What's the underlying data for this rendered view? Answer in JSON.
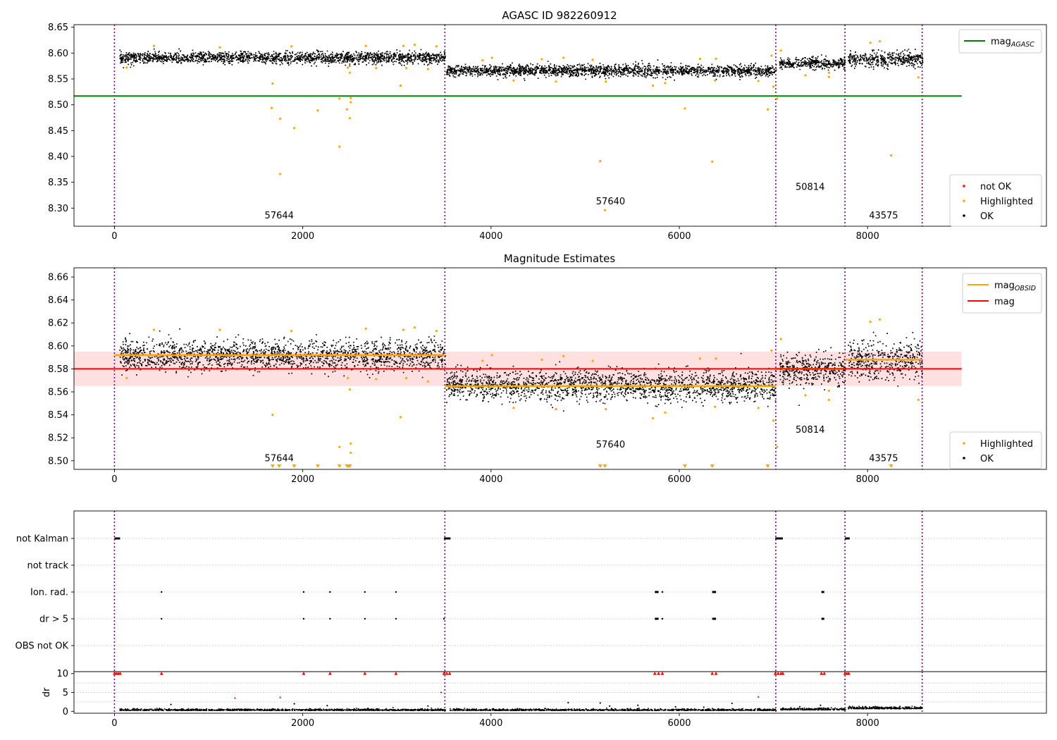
{
  "chart_data": [
    {
      "id": "p1",
      "type": "scatter",
      "title": "AGASC ID 982260912",
      "xlabel": "",
      "ylabel": "",
      "xlim": [
        -430,
        9900
      ],
      "ylim": [
        8.265,
        8.655
      ],
      "xticks": [
        0,
        2000,
        4000,
        6000,
        8000
      ],
      "xtick_labels": [
        "0",
        "2000",
        "4000",
        "6000",
        "8000"
      ],
      "yticks": [
        8.3,
        8.35,
        8.4,
        8.45,
        8.5,
        8.55,
        8.6,
        8.65
      ],
      "ytick_labels": [
        "8.30",
        "8.35",
        "8.40",
        "8.45",
        "8.50",
        "8.55",
        "8.60",
        "8.65"
      ],
      "obsid_boundaries": [
        0,
        3510,
        7025,
        7760,
        8580
      ],
      "obsid_labels": [
        {
          "x": 1750,
          "y": 8.28,
          "text": "57644"
        },
        {
          "x": 5270,
          "y": 8.307,
          "text": "57640"
        },
        {
          "x": 7390,
          "y": 8.335,
          "text": "50814"
        },
        {
          "x": 8170,
          "y": 8.28,
          "text": "43575"
        }
      ],
      "reference_lines": [
        {
          "name": "mag_AGASC",
          "y": 8.517,
          "x0": -430,
          "x1": 9000,
          "color": "#008000"
        }
      ],
      "ok_segments": [
        {
          "x0": 50,
          "x1": 3510,
          "mean": 8.592,
          "std": 0.0055
        },
        {
          "x0": 3520,
          "x1": 7025,
          "mean": 8.567,
          "std": 0.0055
        },
        {
          "x0": 7060,
          "x1": 7760,
          "mean": 8.581,
          "std": 0.0055
        },
        {
          "x0": 7790,
          "x1": 8580,
          "mean": 8.589,
          "std": 0.007
        }
      ],
      "highlighted": [
        [
          130,
          8.572
        ],
        [
          420,
          8.614
        ],
        [
          1120,
          8.611
        ],
        [
          1680,
          8.541
        ],
        [
          1670,
          8.494
        ],
        [
          1760,
          8.473
        ],
        [
          1760,
          8.366
        ],
        [
          1880,
          8.613
        ],
        [
          1910,
          8.455
        ],
        [
          2160,
          8.489
        ],
        [
          2390,
          8.512
        ],
        [
          2390,
          8.419
        ],
        [
          2470,
          8.491
        ],
        [
          2480,
          8.572
        ],
        [
          2500,
          8.562
        ],
        [
          2500,
          8.474
        ],
        [
          2510,
          8.505
        ],
        [
          2510,
          8.513
        ],
        [
          2670,
          8.614
        ],
        [
          2780,
          8.571
        ],
        [
          3040,
          8.537
        ],
        [
          3070,
          8.614
        ],
        [
          3100,
          8.571
        ],
        [
          3190,
          8.616
        ],
        [
          3420,
          8.613
        ],
        [
          3330,
          8.569
        ],
        [
          3910,
          8.586
        ],
        [
          4010,
          8.591
        ],
        [
          4240,
          8.547
        ],
        [
          4540,
          8.588
        ],
        [
          4690,
          8.545
        ],
        [
          4770,
          8.591
        ],
        [
          5080,
          8.587
        ],
        [
          5160,
          8.391
        ],
        [
          5210,
          8.296
        ],
        [
          5220,
          8.545
        ],
        [
          5720,
          8.537
        ],
        [
          5850,
          8.542
        ],
        [
          6060,
          8.493
        ],
        [
          6220,
          8.589
        ],
        [
          6350,
          8.39
        ],
        [
          6390,
          8.589
        ],
        [
          6380,
          8.547
        ],
        [
          6840,
          8.546
        ],
        [
          6940,
          8.491
        ],
        [
          6980,
          8.595
        ],
        [
          7000,
          8.535
        ],
        [
          7040,
          8.512
        ],
        [
          7080,
          8.605
        ],
        [
          7340,
          8.557
        ],
        [
          7590,
          8.554
        ],
        [
          7590,
          8.562
        ],
        [
          8030,
          8.62
        ],
        [
          8130,
          8.623
        ],
        [
          8250,
          8.402
        ],
        [
          8540,
          8.553
        ]
      ],
      "legend_lines": [
        {
          "label": "mag",
          "sub": "AGASC",
          "color": "#008000"
        }
      ],
      "legend_points": [
        {
          "label": "not OK",
          "color": "#ff0000"
        },
        {
          "label": "Highlighted",
          "color": "#ffa500"
        },
        {
          "label": "OK",
          "color": "#000000"
        }
      ]
    },
    {
      "id": "p2",
      "type": "scatter",
      "title": "Magnitude Estimates",
      "xlabel": "",
      "ylabel": "",
      "xlim": [
        -430,
        9900
      ],
      "ylim": [
        8.4925,
        8.668
      ],
      "xticks": [
        0,
        2000,
        4000,
        6000,
        8000
      ],
      "xtick_labels": [
        "0",
        "2000",
        "4000",
        "6000",
        "8000"
      ],
      "yticks": [
        8.5,
        8.52,
        8.54,
        8.56,
        8.58,
        8.6,
        8.62,
        8.64,
        8.66
      ],
      "ytick_labels": [
        "8.50",
        "8.52",
        "8.54",
        "8.56",
        "8.58",
        "8.60",
        "8.62",
        "8.64",
        "8.66"
      ],
      "obsid_boundaries": [
        0,
        3510,
        7025,
        7760,
        8580
      ],
      "obsid_labels": [
        {
          "x": 1750,
          "y": 8.4995,
          "text": "57644"
        },
        {
          "x": 5270,
          "y": 8.5115,
          "text": "57640"
        },
        {
          "x": 7390,
          "y": 8.5245,
          "text": "50814"
        },
        {
          "x": 8170,
          "y": 8.4995,
          "text": "43575"
        }
      ],
      "mag": {
        "y": 8.58,
        "lo": 8.565,
        "hi": 8.595,
        "x0": -430,
        "x1": 9000,
        "color": "#ff0000"
      },
      "mag_obsid": [
        {
          "x0": 0,
          "x1": 3510,
          "y": 8.592
        },
        {
          "x0": 3510,
          "x1": 7025,
          "y": 8.565
        },
        {
          "x0": 7025,
          "x1": 7760,
          "y": 8.58
        },
        {
          "x0": 7760,
          "x1": 8580,
          "y": 8.588
        }
      ],
      "ok_segments": [
        {
          "x0": 50,
          "x1": 3510,
          "mean": 8.592,
          "std": 0.0065
        },
        {
          "x0": 3520,
          "x1": 7025,
          "mean": 8.566,
          "std": 0.0065
        },
        {
          "x0": 7060,
          "x1": 7760,
          "mean": 8.58,
          "std": 0.0065
        },
        {
          "x0": 7790,
          "x1": 8580,
          "mean": 8.588,
          "std": 0.0085
        }
      ],
      "highlighted": [
        [
          130,
          8.572
        ],
        [
          420,
          8.614
        ],
        [
          1120,
          8.614
        ],
        [
          1680,
          8.54
        ],
        [
          1880,
          8.613
        ],
        [
          2390,
          8.512
        ],
        [
          2480,
          8.572
        ],
        [
          2500,
          8.562
        ],
        [
          2510,
          8.507
        ],
        [
          2510,
          8.515
        ],
        [
          2670,
          8.615
        ],
        [
          2780,
          8.571
        ],
        [
          3040,
          8.538
        ],
        [
          3070,
          8.614
        ],
        [
          3100,
          8.572
        ],
        [
          3190,
          8.616
        ],
        [
          3420,
          8.613
        ],
        [
          3330,
          8.569
        ],
        [
          3910,
          8.587
        ],
        [
          4010,
          8.592
        ],
        [
          4240,
          8.546
        ],
        [
          4540,
          8.588
        ],
        [
          4690,
          8.545
        ],
        [
          4770,
          8.591
        ],
        [
          5080,
          8.587
        ],
        [
          5220,
          8.545
        ],
        [
          5720,
          8.537
        ],
        [
          5850,
          8.542
        ],
        [
          6220,
          8.589
        ],
        [
          6390,
          8.589
        ],
        [
          6380,
          8.547
        ],
        [
          6840,
          8.546
        ],
        [
          6980,
          8.596
        ],
        [
          7000,
          8.535
        ],
        [
          7040,
          8.512
        ],
        [
          7080,
          8.606
        ],
        [
          7340,
          8.557
        ],
        [
          7590,
          8.553
        ],
        [
          7590,
          8.561
        ],
        [
          8030,
          8.621
        ],
        [
          8130,
          8.623
        ],
        [
          8540,
          8.553
        ]
      ],
      "below_range_markers": [
        1680,
        1750,
        1910,
        2160,
        2390,
        2470,
        2490,
        2500,
        5160,
        5210,
        6060,
        6350,
        6940,
        8250
      ],
      "legend_lines": [
        {
          "label": "mag",
          "sub": "OBSID",
          "color": "#ffa500"
        },
        {
          "label": "mag",
          "sub": "",
          "color": "#ff0000"
        }
      ],
      "legend_points": [
        {
          "label": "Highlighted",
          "color": "#ffa500"
        },
        {
          "label": "OK",
          "color": "#000000"
        }
      ]
    },
    {
      "id": "p3",
      "type": "scatter",
      "title": "",
      "xlim": [
        -430,
        9900
      ],
      "xticks": [],
      "flag_rows": [
        "not Kalman",
        "not track",
        "Ion. rad.",
        "dr > 5",
        "OBS not OK"
      ],
      "obsid_boundaries": [
        0,
        3510,
        7025,
        7760,
        8580
      ],
      "flag_events": {
        "not Kalman": [
          [
            0,
            60
          ],
          [
            3500,
            3570
          ],
          [
            7020,
            7100
          ],
          [
            7760,
            7810
          ]
        ],
        "Ion. rad.": [
          [
            500,
            500
          ],
          [
            2010,
            2010
          ],
          [
            2290,
            2290
          ],
          [
            2660,
            2660
          ],
          [
            2990,
            2990
          ],
          [
            5740,
            5780
          ],
          [
            5820,
            5820
          ],
          [
            6350,
            6390
          ],
          [
            7510,
            7540
          ]
        ],
        "dr > 5": [
          [
            500,
            500
          ],
          [
            2010,
            2010
          ],
          [
            2290,
            2290
          ],
          [
            2660,
            2660
          ],
          [
            2990,
            2990
          ],
          [
            3500,
            3500
          ],
          [
            5740,
            5780
          ],
          [
            5820,
            5820
          ],
          [
            6350,
            6390
          ],
          [
            7510,
            7540
          ]
        ]
      }
    },
    {
      "id": "p4",
      "type": "scatter",
      "title": "",
      "ylabel": "dr",
      "xlim": [
        -430,
        9900
      ],
      "ylim": [
        -0.5,
        10.5
      ],
      "yticks": [
        0,
        5,
        10
      ],
      "ytick_labels": [
        "0",
        "5",
        "10"
      ],
      "xticks": [
        0,
        2000,
        4000,
        6000,
        8000
      ],
      "xtick_labels": [
        "0",
        "2000",
        "4000",
        "6000",
        "8000"
      ],
      "obsid_boundaries": [
        0,
        3510,
        7025,
        7760,
        8580
      ],
      "clipped_red_x": [
        0,
        20,
        40,
        60,
        500,
        2010,
        2290,
        2660,
        2990,
        3500,
        3530,
        3560,
        5740,
        5780,
        5820,
        6350,
        6390,
        7020,
        7050,
        7080,
        7100,
        7510,
        7540,
        7760,
        7780,
        7800
      ],
      "red_points": [
        [
          1280,
          3.5
        ],
        [
          1760,
          3.7
        ],
        [
          3470,
          5.0
        ],
        [
          6840,
          3.8
        ]
      ],
      "black_points": [
        [
          600,
          1.8
        ],
        [
          1910,
          2.0
        ],
        [
          2260,
          1.5
        ],
        [
          3330,
          1.4
        ],
        [
          4820,
          2.3
        ],
        [
          5160,
          2.2
        ],
        [
          5260,
          1.4
        ],
        [
          5560,
          1.6
        ],
        [
          5960,
          1.2
        ],
        [
          6260,
          1.1
        ],
        [
          6560,
          2.1
        ],
        [
          7500,
          1.6
        ],
        [
          7280,
          1.2
        ]
      ],
      "segments": [
        {
          "x0": 50,
          "x1": 3510,
          "mean": 0.35,
          "std": 0.25
        },
        {
          "x0": 3560,
          "x1": 7025,
          "mean": 0.35,
          "std": 0.25
        },
        {
          "x0": 7060,
          "x1": 7760,
          "mean": 0.5,
          "std": 0.3
        },
        {
          "x0": 7790,
          "x1": 8580,
          "mean": 0.8,
          "std": 0.35
        }
      ]
    }
  ]
}
